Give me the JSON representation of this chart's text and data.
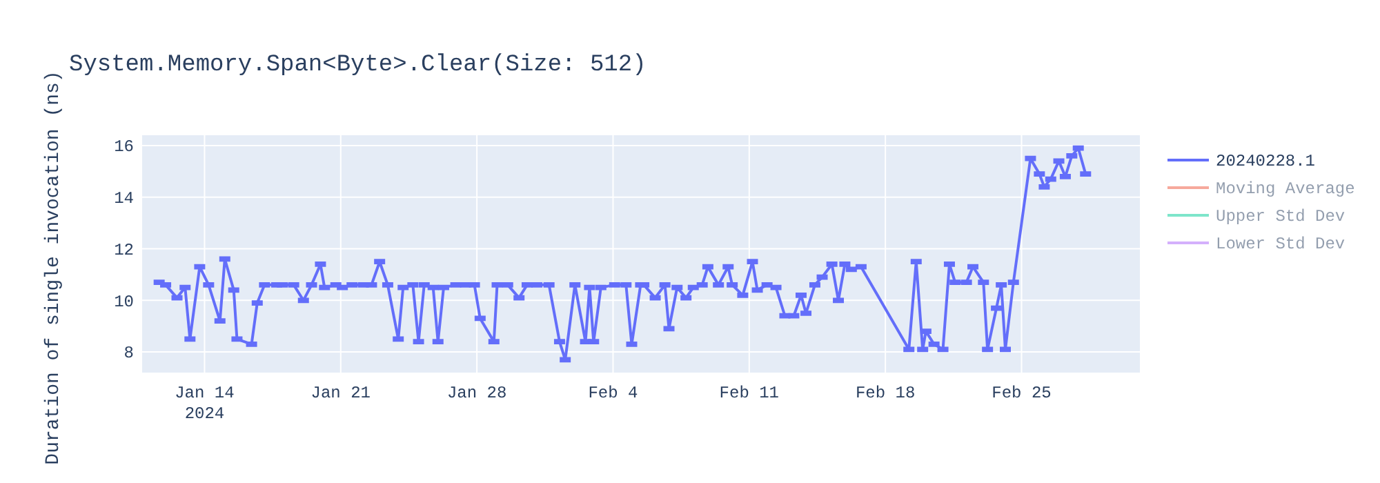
{
  "chart_data": {
    "type": "line",
    "title": "System.Memory.Span<Byte>.Clear(Size: 512)",
    "ylabel": "Duration of single invocation (ns)",
    "xlim": [
      "2024-01-10T19:00",
      "2024-03-02T02:00"
    ],
    "xticks": [
      {
        "value": "2024-01-14",
        "label": "Jan 14\n2024"
      },
      {
        "value": "2024-01-21",
        "label": "Jan 21"
      },
      {
        "value": "2024-01-28",
        "label": "Jan 28"
      },
      {
        "value": "2024-02-04",
        "label": "Feb 4"
      },
      {
        "value": "2024-02-11",
        "label": "Feb 11"
      },
      {
        "value": "2024-02-18",
        "label": "Feb 18"
      },
      {
        "value": "2024-02-25",
        "label": "Feb 25"
      }
    ],
    "ylim": [
      7.2,
      16.4
    ],
    "yticks": [
      8,
      10,
      12,
      14,
      16
    ],
    "grid": true,
    "legend": "top right",
    "line_style": "solid",
    "marker": "none",
    "series": [
      {
        "name": "20240228.1",
        "color": "#636efa",
        "x": [
          "2024-01-11T16:00",
          "2024-01-12T00:00",
          "2024-01-12T14:00",
          "2024-01-13T00:00",
          "2024-01-13T06:00",
          "2024-01-13T18:00",
          "2024-01-14T05:00",
          "2024-01-14T19:00",
          "2024-01-15T01:00",
          "2024-01-15T12:00",
          "2024-01-15T16:00",
          "2024-01-16T10:00",
          "2024-01-16T17:00",
          "2024-01-17T02:00",
          "2024-01-17T17:00",
          "2024-01-18T00:00",
          "2024-01-18T14:00",
          "2024-01-19T02:00",
          "2024-01-19T12:00",
          "2024-01-19T23:00",
          "2024-01-20T04:00",
          "2024-01-20T18:00",
          "2024-01-21T02:00",
          "2024-01-21T14:00",
          "2024-01-22T04:00",
          "2024-01-22T14:00",
          "2024-01-23T00:00",
          "2024-01-23T10:00",
          "2024-01-23T23:00",
          "2024-01-24T05:00",
          "2024-01-24T17:00",
          "2024-01-25T00:00",
          "2024-01-25T07:00",
          "2024-01-25T18:00",
          "2024-01-26T00:00",
          "2024-01-26T07:00",
          "2024-01-26T22:00",
          "2024-01-27T10:00",
          "2024-01-27T21:00",
          "2024-01-28T04:00",
          "2024-01-28T21:00",
          "2024-01-29T01:00",
          "2024-01-29T14:00",
          "2024-01-30T04:00",
          "2024-01-30T14:00",
          "2024-01-31T02:00",
          "2024-01-31T17:00",
          "2024-02-01T06:00",
          "2024-02-01T13:00",
          "2024-02-02T01:00",
          "2024-02-02T14:00",
          "2024-02-02T19:00",
          "2024-02-03T00:00",
          "2024-02-03T09:00",
          "2024-02-04T02:00",
          "2024-02-04T16:00",
          "2024-02-04T23:00",
          "2024-02-05T10:00",
          "2024-02-05T14:00",
          "2024-02-06T04:00",
          "2024-02-06T16:00",
          "2024-02-06T21:00",
          "2024-02-07T07:00",
          "2024-02-07T18:00",
          "2024-02-08T03:00",
          "2024-02-08T14:00",
          "2024-02-08T21:00",
          "2024-02-09T10:00",
          "2024-02-09T22:00",
          "2024-02-10T03:00",
          "2024-02-10T16:00",
          "2024-02-11T04:00",
          "2024-02-11T10:00",
          "2024-02-11T22:00",
          "2024-02-12T09:00",
          "2024-02-12T20:00",
          "2024-02-13T07:00",
          "2024-02-13T16:00",
          "2024-02-13T22:00",
          "2024-02-14T09:00",
          "2024-02-14T18:00",
          "2024-02-15T06:00",
          "2024-02-15T14:00",
          "2024-02-15T22:00",
          "2024-02-16T06:00",
          "2024-02-16T18:00",
          "2024-02-19T05:00",
          "2024-02-19T14:00",
          "2024-02-19T22:00",
          "2024-02-20T02:00",
          "2024-02-20T12:00",
          "2024-02-20T23:00",
          "2024-02-21T07:00",
          "2024-02-21T14:00",
          "2024-02-22T04:00",
          "2024-02-22T12:00",
          "2024-02-23T01:00",
          "2024-02-23T06:00",
          "2024-02-23T17:00",
          "2024-02-23T23:00",
          "2024-02-24T04:00",
          "2024-02-24T14:00",
          "2024-02-25T11:00",
          "2024-02-25T22:00",
          "2024-02-26T04:00",
          "2024-02-26T12:00",
          "2024-02-26T22:00",
          "2024-02-27T06:00",
          "2024-02-27T14:00",
          "2024-02-27T22:00",
          "2024-02-28T07:00"
        ],
        "values": [
          10.7,
          10.6,
          10.1,
          10.5,
          8.5,
          11.3,
          10.6,
          9.2,
          11.6,
          10.4,
          8.5,
          8.3,
          9.9,
          10.6,
          10.6,
          10.6,
          10.6,
          10.0,
          10.6,
          11.4,
          10.5,
          10.6,
          10.5,
          10.6,
          10.6,
          10.6,
          11.5,
          10.6,
          8.5,
          10.5,
          10.6,
          8.4,
          10.6,
          10.5,
          8.4,
          10.5,
          10.6,
          10.6,
          10.6,
          9.3,
          8.4,
          10.6,
          10.6,
          10.1,
          10.6,
          10.6,
          10.6,
          8.4,
          7.7,
          10.6,
          8.4,
          10.5,
          8.4,
          10.5,
          10.6,
          10.6,
          8.3,
          10.6,
          10.6,
          10.1,
          10.6,
          8.9,
          10.5,
          10.1,
          10.5,
          10.6,
          11.3,
          10.6,
          11.3,
          10.6,
          10.2,
          11.5,
          10.4,
          10.6,
          10.5,
          9.4,
          9.4,
          10.2,
          9.5,
          10.6,
          10.9,
          11.4,
          10.0,
          11.4,
          11.2,
          11.3,
          8.1,
          11.5,
          8.1,
          8.8,
          8.3,
          8.1,
          11.4,
          10.7,
          10.7,
          11.3,
          10.7,
          8.1,
          9.7,
          10.6,
          8.1,
          10.7,
          15.5,
          14.9,
          14.4,
          14.7,
          15.4,
          14.8,
          15.6,
          15.9,
          14.9
        ],
        "errors": [
          0.05,
          0.05,
          0.05,
          0.05,
          0.05,
          0.05,
          0.05,
          0.05,
          0.05,
          0.05,
          0.05,
          0.05,
          0.05,
          0.05,
          0.05,
          0.05,
          0.05,
          0.05,
          0.05,
          0.05,
          0.05,
          0.05,
          0.05,
          0.05,
          0.05,
          0.05,
          0.05,
          0.05,
          0.05,
          0.05,
          0.05,
          0.05,
          0.05,
          0.05,
          0.05,
          0.05,
          0.05,
          0.05,
          0.05,
          0.05,
          0.05,
          0.05,
          0.05,
          0.05,
          0.05,
          0.05,
          0.05,
          0.05,
          0.05,
          0.05,
          0.05,
          0.05,
          0.05,
          0.05,
          0.05,
          0.05,
          0.05,
          0.05,
          0.05,
          0.05,
          0.05,
          0.05,
          0.05,
          0.05,
          0.05,
          0.05,
          0.05,
          0.05,
          0.05,
          0.05,
          0.05,
          0.05,
          0.05,
          0.05,
          0.05,
          0.05,
          0.05,
          0.05,
          0.05,
          0.05,
          0.05,
          0.05,
          0.05,
          0.05,
          0.05,
          0.05,
          0.05,
          0.05,
          0.05,
          0.05,
          0.05,
          0.05,
          0.05,
          0.05,
          0.05,
          0.05,
          0.05,
          0.05,
          0.05,
          0.05,
          0.05,
          0.05,
          0.05,
          0.05,
          0.05,
          0.05,
          0.05,
          0.05,
          0.05,
          0.05,
          0.05
        ]
      },
      {
        "name": "Moving Average",
        "color": "#ef553b"
      },
      {
        "name": "Upper Std Dev",
        "color": "#00cc96"
      },
      {
        "name": "Lower Std Dev",
        "color": "#ab63fa"
      }
    ]
  }
}
